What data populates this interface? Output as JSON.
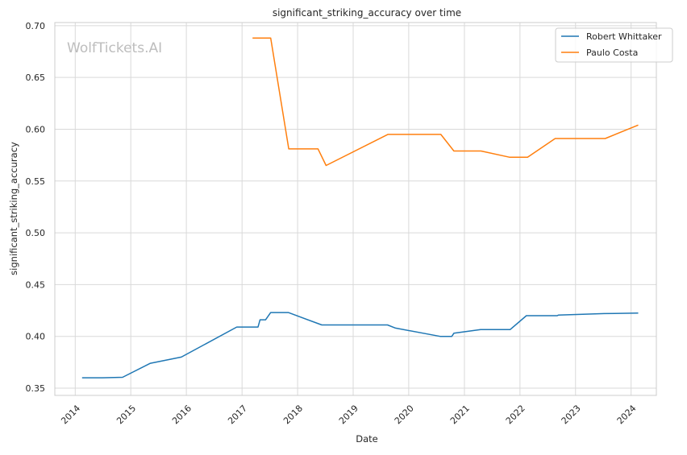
{
  "chart_data": {
    "type": "line",
    "title": "significant_striking_accuracy over time",
    "xlabel": "Date",
    "ylabel": "significant_striking_accuracy",
    "watermark": "WolfTickets.AI",
    "x_type": "date",
    "xlim": [
      "2013-08-20",
      "2024-06-15"
    ],
    "ylim": [
      0.343,
      0.703
    ],
    "x_ticks": [
      "2014",
      "2015",
      "2016",
      "2017",
      "2018",
      "2019",
      "2020",
      "2021",
      "2022",
      "2023",
      "2024"
    ],
    "y_ticks": [
      "0.35",
      "0.40",
      "0.45",
      "0.50",
      "0.55",
      "0.60",
      "0.65",
      "0.70"
    ],
    "grid": true,
    "legend_position": "top-right",
    "series": [
      {
        "name": "Robert Whittaker",
        "color": "#1f77b4",
        "points": [
          {
            "x": "2014-02-15",
            "y": 0.36
          },
          {
            "x": "2014-06-28",
            "y": 0.36
          },
          {
            "x": "2014-11-08",
            "y": 0.3605
          },
          {
            "x": "2015-05-10",
            "y": 0.374
          },
          {
            "x": "2015-11-29",
            "y": 0.38
          },
          {
            "x": "2016-11-27",
            "y": 0.409
          },
          {
            "x": "2017-04-16",
            "y": 0.409
          },
          {
            "x": "2017-04-29",
            "y": 0.416
          },
          {
            "x": "2017-06-05",
            "y": 0.416
          },
          {
            "x": "2017-07-08",
            "y": 0.423
          },
          {
            "x": "2017-11-01",
            "y": 0.423
          },
          {
            "x": "2018-06-09",
            "y": 0.411
          },
          {
            "x": "2019-08-15",
            "y": 0.411
          },
          {
            "x": "2019-10-06",
            "y": 0.408
          },
          {
            "x": "2020-07-25",
            "y": 0.4
          },
          {
            "x": "2020-10-10",
            "y": 0.4
          },
          {
            "x": "2020-10-24",
            "y": 0.403
          },
          {
            "x": "2021-04-17",
            "y": 0.4065
          },
          {
            "x": "2021-10-28",
            "y": 0.4065
          },
          {
            "x": "2022-02-12",
            "y": 0.42
          },
          {
            "x": "2022-09-03",
            "y": 0.42
          },
          {
            "x": "2022-09-10",
            "y": 0.4205
          },
          {
            "x": "2023-07-08",
            "y": 0.422
          },
          {
            "x": "2024-02-17",
            "y": 0.4225
          }
        ]
      },
      {
        "name": "Paulo Costa",
        "color": "#ff7f0e",
        "points": [
          {
            "x": "2017-03-11",
            "y": 0.688
          },
          {
            "x": "2017-07-08",
            "y": 0.688
          },
          {
            "x": "2017-11-04",
            "y": 0.581
          },
          {
            "x": "2018-05-15",
            "y": 0.581
          },
          {
            "x": "2018-07-07",
            "y": 0.565
          },
          {
            "x": "2019-08-17",
            "y": 0.595
          },
          {
            "x": "2020-07-30",
            "y": 0.595
          },
          {
            "x": "2020-10-24",
            "y": 0.579
          },
          {
            "x": "2021-04-20",
            "y": 0.579
          },
          {
            "x": "2021-10-23",
            "y": 0.573
          },
          {
            "x": "2022-02-20",
            "y": 0.573
          },
          {
            "x": "2022-08-20",
            "y": 0.591
          },
          {
            "x": "2023-07-15",
            "y": 0.591
          },
          {
            "x": "2024-02-17",
            "y": 0.604
          }
        ]
      }
    ]
  }
}
